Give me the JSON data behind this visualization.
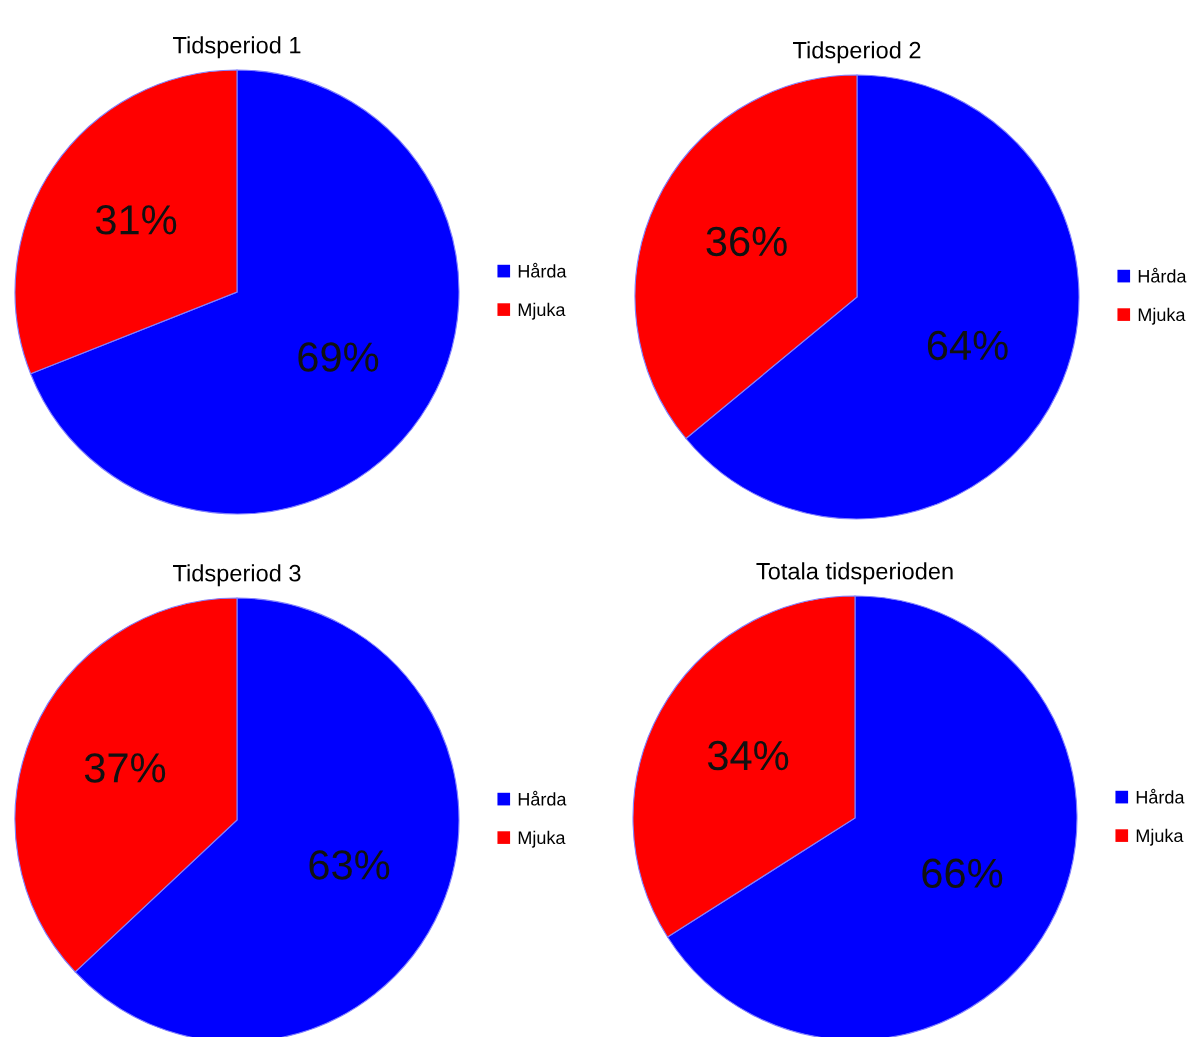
{
  "chart_data": [
    {
      "type": "pie",
      "title": "Tidsperiod 1",
      "categories": [
        "Hårda",
        "Mjuka"
      ],
      "values": [
        69,
        31
      ],
      "value_labels": [
        "69%",
        "31%"
      ],
      "colors": [
        "#0000ff",
        "#ff0000"
      ],
      "legend": "right"
    },
    {
      "type": "pie",
      "title": "Tidsperiod 2",
      "categories": [
        "Hårda",
        "Mjuka"
      ],
      "values": [
        64,
        36
      ],
      "value_labels": [
        "64%",
        "36%"
      ],
      "colors": [
        "#0000ff",
        "#ff0000"
      ],
      "legend": "right"
    },
    {
      "type": "pie",
      "title": "Tidsperiod 3",
      "categories": [
        "Hårda",
        "Mjuka"
      ],
      "values": [
        63,
        37
      ],
      "value_labels": [
        "63%",
        "37%"
      ],
      "colors": [
        "#0000ff",
        "#ff0000"
      ],
      "legend": "right"
    },
    {
      "type": "pie",
      "title": "Totala tidsperioden",
      "categories": [
        "Hårda",
        "Mjuka"
      ],
      "values": [
        66,
        34
      ],
      "value_labels": [
        "66%",
        "34%"
      ],
      "colors": [
        "#0000ff",
        "#ff0000"
      ],
      "legend": "right"
    }
  ]
}
